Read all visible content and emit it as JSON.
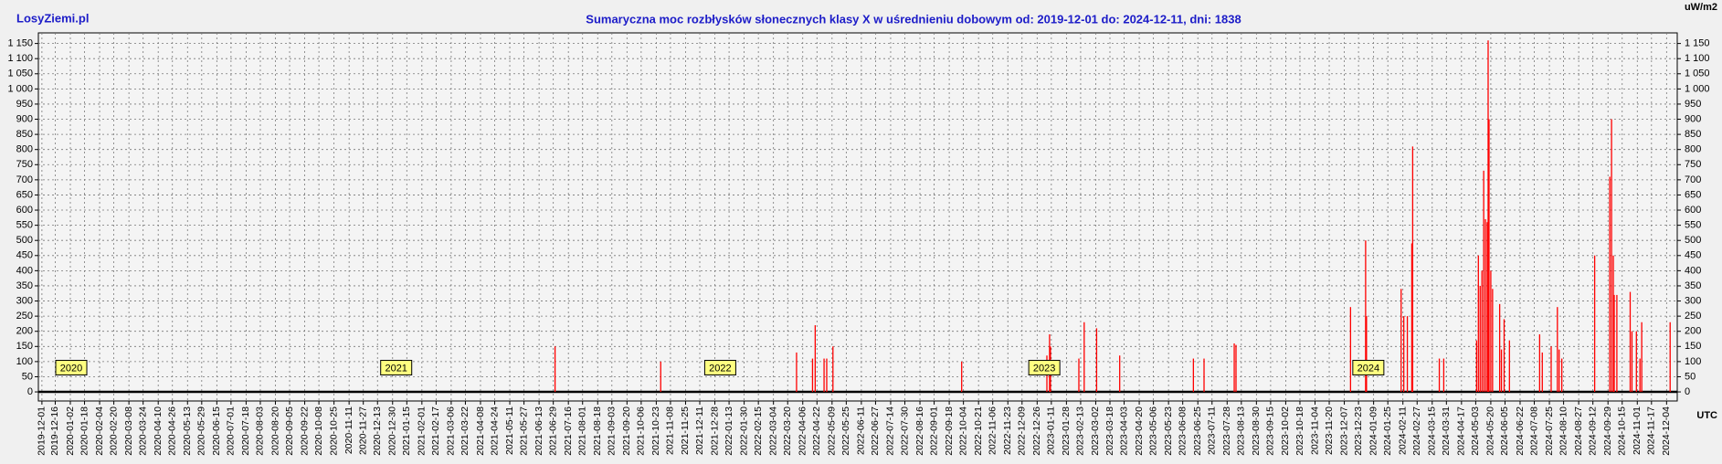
{
  "site": "LosyZiemi.pl",
  "chart_data": {
    "type": "bar",
    "title": "Sumaryczna moc rozbłysków słonecznych klasy X w uśrednieniu dobowym od: 2019-12-01 do: 2024-12-11, dni: 1838",
    "y_unit": "uW/m2",
    "x_unit": "UTC",
    "color": "#ff0000",
    "grid": true,
    "xlim": [
      "2019-11-27",
      "2024-12-16"
    ],
    "ylim": [
      -30,
      1185
    ],
    "yticks": [
      0,
      50,
      100,
      150,
      200,
      250,
      300,
      350,
      400,
      450,
      500,
      550,
      600,
      650,
      700,
      750,
      800,
      850,
      900,
      950,
      {
        "value": 1000,
        "label": "1 000"
      },
      {
        "value": 1050,
        "label": "1 050"
      },
      {
        "value": 1100,
        "label": "1 100"
      },
      {
        "value": 1150,
        "label": "1 150"
      }
    ],
    "xticks": [
      "2019-12-01",
      "2019-12-16",
      "2020-01-02",
      "2020-01-18",
      "2020-02-04",
      "2020-02-20",
      "2020-03-08",
      "2020-03-24",
      "2020-04-10",
      "2020-04-26",
      "2020-05-13",
      "2020-05-29",
      "2020-06-15",
      "2020-07-01",
      "2020-07-18",
      "2020-08-03",
      "2020-08-20",
      "2020-09-05",
      "2020-09-22",
      "2020-10-08",
      "2020-10-25",
      "2020-11-11",
      "2020-11-27",
      "2020-12-13",
      "2020-12-30",
      "2021-01-15",
      "2021-02-01",
      "2021-02-17",
      "2021-03-06",
      "2021-03-22",
      "2021-04-08",
      "2021-04-24",
      "2021-05-11",
      "2021-05-27",
      "2021-06-13",
      "2021-06-29",
      "2021-07-16",
      "2021-08-01",
      "2021-08-18",
      "2021-09-03",
      "2021-09-20",
      "2021-10-06",
      "2021-10-23",
      "2021-11-08",
      "2021-11-25",
      "2021-12-11",
      "2021-12-28",
      "2022-01-13",
      "2022-01-30",
      "2022-02-15",
      "2022-03-04",
      "2022-03-20",
      "2022-04-06",
      "2022-04-22",
      "2022-05-09",
      "2022-05-25",
      "2022-06-11",
      "2022-06-27",
      "2022-07-14",
      "2022-07-30",
      "2022-08-16",
      "2022-09-01",
      "2022-09-18",
      "2022-10-04",
      "2022-10-21",
      "2022-11-06",
      "2022-11-23",
      "2022-12-09",
      "2022-12-26",
      "2023-01-11",
      "2023-01-28",
      "2023-02-13",
      "2023-03-02",
      "2023-03-18",
      "2023-04-03",
      "2023-04-20",
      "2023-05-06",
      "2023-05-23",
      "2023-06-08",
      "2023-06-25",
      "2023-07-11",
      "2023-07-28",
      "2023-08-13",
      "2023-08-30",
      "2023-09-15",
      "2023-10-02",
      "2023-10-18",
      "2023-11-04",
      "2023-11-20",
      "2023-12-07",
      "2023-12-23",
      "2024-01-09",
      "2024-01-25",
      "2024-02-11",
      "2024-02-27",
      "2024-03-15",
      "2024-03-31",
      "2024-04-17",
      "2024-05-03",
      "2024-05-20",
      "2024-06-05",
      "2024-06-22",
      "2024-07-08",
      "2024-07-25",
      "2024-08-10",
      "2024-08-27",
      "2024-09-12",
      "2024-09-29",
      "2024-10-15",
      "2024-11-01",
      "2024-11-17",
      "2024-12-04"
    ],
    "annotations": [
      {
        "text": "2020",
        "x": "2020-01-01",
        "y": 80
      },
      {
        "text": "2021",
        "x": "2021-01-01",
        "y": 80
      },
      {
        "text": "2022",
        "x": "2022-01-01",
        "y": 80
      },
      {
        "text": "2023",
        "x": "2023-01-01",
        "y": 80
      },
      {
        "text": "2024",
        "x": "2024-01-01",
        "y": 80
      }
    ],
    "x": [
      "2021-07-01",
      "2021-10-28",
      "2022-03-30",
      "2022-04-17",
      "2022-04-20",
      "2022-04-30",
      "2022-05-03",
      "2022-05-10",
      "2022-10-02",
      "2023-01-06",
      "2023-01-09",
      "2023-01-10",
      "2023-02-11",
      "2023-02-17",
      "2023-03-03",
      "2023-03-29",
      "2023-06-20",
      "2023-07-02",
      "2023-08-05",
      "2023-08-07",
      "2023-12-14",
      "2023-12-31",
      "2024-01-01",
      "2024-02-09",
      "2024-02-12",
      "2024-02-16",
      "2024-02-21",
      "2024-02-22",
      "2024-03-23",
      "2024-03-28",
      "2024-05-04",
      "2024-05-06",
      "2024-05-08",
      "2024-05-10",
      "2024-05-12",
      "2024-05-14",
      "2024-05-16",
      "2024-05-17",
      "2024-05-18",
      "2024-05-20",
      "2024-05-22",
      "2024-05-30",
      "2024-06-01",
      "2024-06-04",
      "2024-06-10",
      "2024-07-14",
      "2024-07-17",
      "2024-07-27",
      "2024-08-03",
      "2024-08-05",
      "2024-08-08",
      "2024-09-14",
      "2024-10-01",
      "2024-10-03",
      "2024-10-05",
      "2024-10-06",
      "2024-10-09",
      "2024-10-24",
      "2024-10-26",
      "2024-10-31",
      "2024-11-04",
      "2024-11-06",
      "2024-12-08"
    ],
    "values": [
      150,
      100,
      130,
      110,
      220,
      110,
      110,
      150,
      100,
      120,
      190,
      150,
      110,
      230,
      210,
      120,
      110,
      110,
      160,
      155,
      280,
      500,
      250,
      340,
      250,
      250,
      490,
      810,
      110,
      110,
      170,
      450,
      350,
      400,
      730,
      570,
      560,
      1160,
      900,
      400,
      340,
      290,
      140,
      240,
      170,
      190,
      130,
      150,
      280,
      140,
      110,
      450,
      710,
      900,
      450,
      320,
      320,
      330,
      200,
      200,
      110,
      230,
      230
    ]
  }
}
